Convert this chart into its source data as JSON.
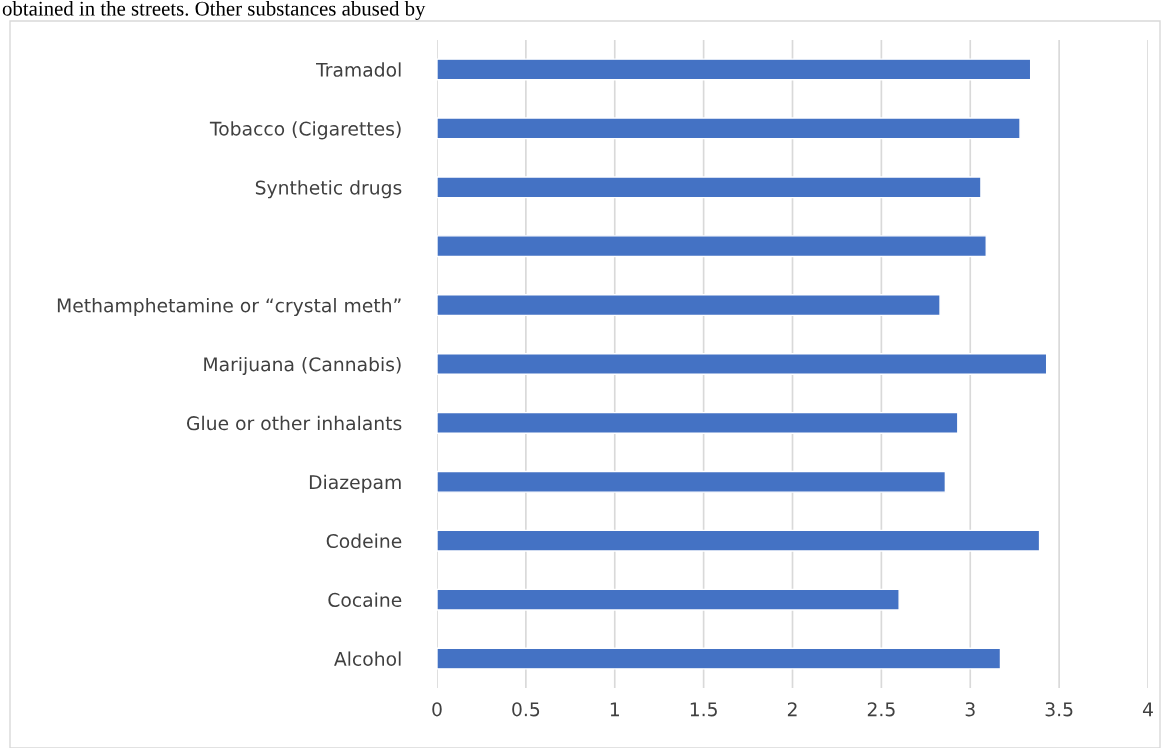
{
  "chart_data": {
    "type": "bar",
    "orientation": "horizontal",
    "categories": [
      "Tramadol",
      "Tobacco (Cigarettes)",
      "Synthetic drugs",
      null,
      "Methamphetamine or “crystal meth”",
      "Marijuana (Cannabis)",
      "Glue or other inhalants",
      "Diazepam",
      "Codeine",
      "Cocaine",
      "Alcohol"
    ],
    "values": [
      3.34,
      3.28,
      3.06,
      3.09,
      2.83,
      3.43,
      2.93,
      2.86,
      3.39,
      2.6,
      3.17
    ],
    "color": "#4472c4",
    "xlim": [
      0,
      4
    ],
    "xticks": [
      0,
      0.5,
      1,
      1.5,
      2,
      2.5,
      3,
      3.5,
      4
    ],
    "grid": "x",
    "annotations": [
      "obtained in the streets. Other substances abused by"
    ]
  }
}
